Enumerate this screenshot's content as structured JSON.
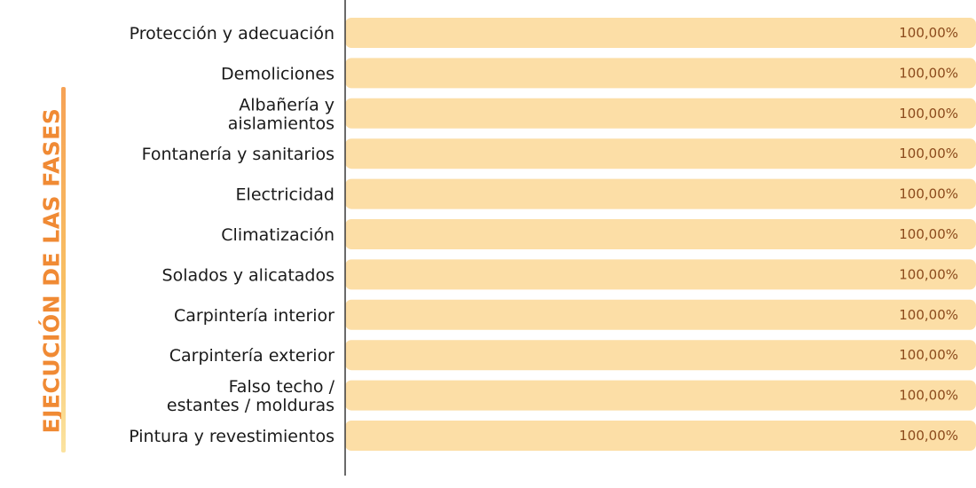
{
  "side_title": "EJECUCIÓN DE LAS FASES",
  "colors": {
    "bar": "#fcdea6",
    "axis": "#444444",
    "title": "#f08a34",
    "value_text": "#8b4a1c"
  },
  "chart_data": {
    "type": "bar",
    "orientation": "horizontal",
    "categories": [
      "Protección y adecuación",
      "Demoliciones",
      "Albañería y aislamientos",
      "Fontanería y sanitarios",
      "Electricidad",
      "Climatización",
      "Solados y alicatados",
      "Carpintería interior",
      "Carpintería exterior",
      "Falso techo / estantes / molduras",
      "Pintura y revestimientos"
    ],
    "category_lines": [
      [
        "Protección y adecuación"
      ],
      [
        "Demoliciones"
      ],
      [
        "Albañería y",
        "aislamientos"
      ],
      [
        "Fontanería y sanitarios"
      ],
      [
        "Electricidad"
      ],
      [
        "Climatización"
      ],
      [
        "Solados y alicatados"
      ],
      [
        "Carpintería interior"
      ],
      [
        "Carpintería exterior"
      ],
      [
        "Falso techo /",
        "estantes / molduras"
      ],
      [
        "Pintura y revestimientos"
      ]
    ],
    "values": [
      100,
      100,
      100,
      100,
      100,
      100,
      100,
      100,
      100,
      100,
      100
    ],
    "value_labels": [
      "100,00%",
      "100,00%",
      "100,00%",
      "100,00%",
      "100,00%",
      "100,00%",
      "100,00%",
      "100,00%",
      "100,00%",
      "100,00%",
      "100,00%"
    ],
    "xlim": [
      0,
      100
    ],
    "grid": false,
    "legend": "none"
  }
}
